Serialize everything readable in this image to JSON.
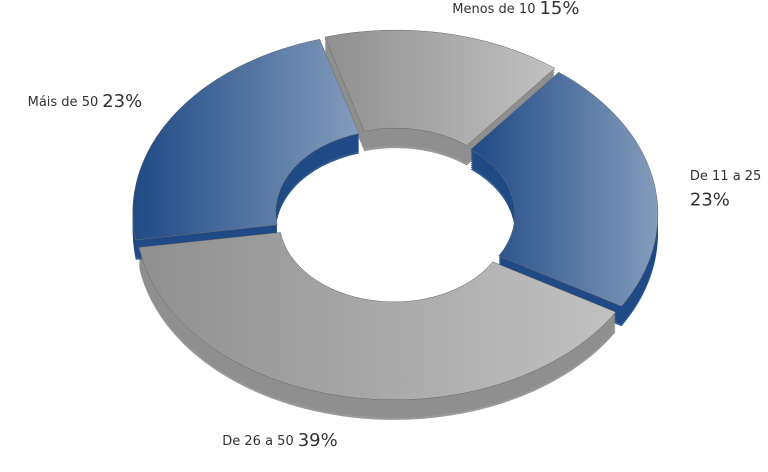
{
  "chart_data": {
    "type": "donut",
    "categories": [
      "Menos de 10",
      "De 11 a 25",
      "De 26 a 50",
      "Máis de 50"
    ],
    "values": [
      15,
      23,
      39,
      23
    ],
    "value_labels": [
      "15%",
      "23%",
      "39%",
      "23%"
    ],
    "colors": [
      "#8f8f8f",
      "#1f4a85",
      "#8f8f8f",
      "#1f4a85"
    ]
  }
}
